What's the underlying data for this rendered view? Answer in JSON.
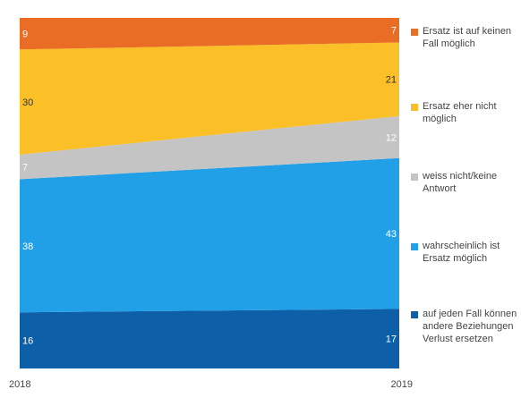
{
  "chart_data": {
    "type": "area",
    "stacked": true,
    "x": [
      "2018",
      "2019"
    ],
    "ylim": [
      0,
      100
    ],
    "grid": false,
    "legend_position": "right",
    "series": [
      {
        "name": "auf jeden Fall können andere Beziehungen Verlust ersetzen",
        "values": [
          16,
          17
        ],
        "color": "#0d5fa8",
        "label_color": "#ffffff"
      },
      {
        "name": "wahrscheinlich ist Ersatz möglich",
        "values": [
          38,
          43
        ],
        "color": "#21a0e8",
        "label_color": "#ffffff"
      },
      {
        "name": "weiss nicht/keine Antwort",
        "values": [
          7,
          12
        ],
        "color": "#c4c4c4",
        "label_color": "#ffffff"
      },
      {
        "name": "Ersatz eher nicht möglich",
        "values": [
          30,
          21
        ],
        "color": "#fbbf28",
        "label_color": "#333333"
      },
      {
        "name": "Ersatz ist auf keinen Fall möglich",
        "values": [
          9,
          7
        ],
        "color": "#e96d24",
        "label_color": "#ffffff"
      }
    ]
  }
}
